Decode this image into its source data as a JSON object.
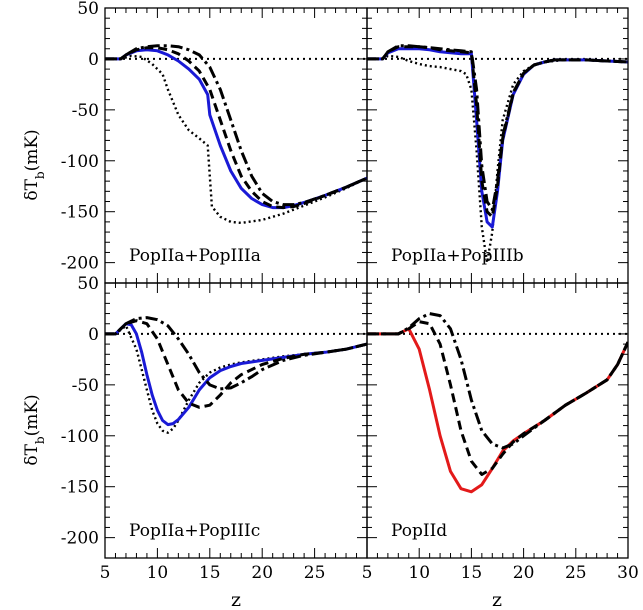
{
  "figure": {
    "ylabel_main": "δT",
    "ylabel_sub": "b",
    "ylabel_unit": "(mK)",
    "xlabel": "z"
  },
  "colors": {
    "blue": "#1a1ad6",
    "red": "#e31a1a",
    "black": "#000000"
  },
  "chart_data": [
    {
      "type": "line",
      "panel": "top-left",
      "annotation": "PopIIa+PopIIIa",
      "xlim": [
        5,
        30
      ],
      "ylim": [
        -220,
        50
      ],
      "series": [
        {
          "style": "dotted",
          "color": "#000000",
          "x": [
            5,
            6.5,
            7.5,
            8.5,
            9.5,
            10.5,
            11,
            12,
            13,
            14,
            14.8,
            15.2,
            16,
            17,
            18,
            20,
            22,
            24,
            26,
            28,
            30
          ],
          "y": [
            0,
            0,
            3,
            2,
            -5,
            -15,
            -30,
            -55,
            -70,
            -78,
            -85,
            -145,
            -155,
            -160,
            -161,
            -158,
            -152,
            -144,
            -136,
            -127,
            -117
          ]
        },
        {
          "style": "solid",
          "color": "#1a1ad6",
          "x": [
            5,
            6.5,
            7,
            8,
            9,
            10,
            11,
            12,
            13,
            14,
            14.8,
            15,
            16,
            17,
            18,
            19,
            20,
            21,
            22,
            23,
            24,
            26,
            28,
            30
          ],
          "y": [
            0,
            0,
            4,
            8,
            9,
            8,
            4,
            -2,
            -10,
            -20,
            -35,
            -55,
            -85,
            -110,
            -127,
            -137,
            -143,
            -146,
            -146,
            -144,
            -141,
            -134,
            -126,
            -117
          ]
        },
        {
          "style": "dashed",
          "color": "#000000",
          "x": [
            5,
            6.5,
            7,
            8,
            9,
            10,
            11,
            12,
            13,
            14,
            15,
            16,
            17,
            18,
            19,
            20,
            21,
            22,
            23,
            24,
            26,
            28,
            30
          ],
          "y": [
            0,
            0,
            4,
            9,
            11,
            11,
            9,
            5,
            -2,
            -12,
            -30,
            -60,
            -90,
            -115,
            -130,
            -140,
            -145,
            -146,
            -145,
            -142,
            -134,
            -126,
            -117
          ]
        },
        {
          "style": "dashdot",
          "color": "#000000",
          "x": [
            5,
            6.5,
            7,
            8,
            9,
            10,
            11,
            12,
            13,
            14,
            15,
            16,
            17,
            18,
            19,
            20,
            21,
            22,
            23,
            24,
            26,
            28,
            30
          ],
          "y": [
            0,
            0,
            4,
            10,
            12,
            13,
            13,
            12,
            9,
            4,
            -8,
            -30,
            -60,
            -90,
            -115,
            -132,
            -140,
            -143,
            -143,
            -141,
            -134,
            -126,
            -117
          ]
        }
      ]
    },
    {
      "type": "line",
      "panel": "top-right",
      "annotation": "PopIIa+PopIIIb",
      "xlim": [
        5,
        30
      ],
      "ylim": [
        -220,
        50
      ],
      "series": [
        {
          "style": "dotted",
          "color": "#000000",
          "x": [
            5,
            6.5,
            7,
            8,
            9,
            10,
            11,
            12,
            13,
            14,
            14.5,
            15,
            15.5,
            16,
            16.5,
            17,
            17.5,
            18,
            19,
            20,
            21,
            22,
            23,
            24,
            25,
            26,
            28,
            30
          ],
          "y": [
            0,
            0,
            3,
            2,
            -2,
            -5,
            -7,
            -8,
            -10,
            -12,
            -15,
            -30,
            -90,
            -165,
            -200,
            -170,
            -110,
            -60,
            -25,
            -12,
            -6,
            -3,
            -2,
            -1,
            -1,
            -1,
            -2,
            -3
          ]
        },
        {
          "style": "solid",
          "color": "#1a1ad6",
          "x": [
            5,
            6.5,
            7,
            8,
            9,
            10,
            11,
            12,
            13,
            14,
            15,
            15.5,
            16,
            16.5,
            17,
            17.5,
            18,
            19,
            20,
            21,
            22,
            23,
            24,
            25,
            26,
            28,
            30
          ],
          "y": [
            0,
            0,
            6,
            10,
            10,
            10,
            9,
            7,
            6,
            5,
            5,
            -60,
            -130,
            -160,
            -165,
            -130,
            -80,
            -35,
            -15,
            -6,
            -3,
            -1,
            -1,
            -1,
            -1,
            -2,
            -3
          ]
        },
        {
          "style": "dashed",
          "color": "#000000",
          "x": [
            5,
            6.5,
            7,
            8,
            9,
            10,
            11,
            12,
            13,
            14,
            15,
            15.5,
            16,
            16.5,
            17,
            17.5,
            18,
            19,
            20,
            21,
            22,
            23,
            24,
            25,
            26,
            28,
            30
          ],
          "y": [
            0,
            0,
            7,
            12,
            12,
            12,
            11,
            9,
            8,
            7,
            6,
            -45,
            -120,
            -150,
            -155,
            -125,
            -78,
            -34,
            -14,
            -6,
            -3,
            -1,
            -1,
            -1,
            -1,
            -2,
            -3
          ]
        },
        {
          "style": "dashdot",
          "color": "#000000",
          "x": [
            5,
            6.5,
            7,
            8,
            9,
            10,
            11,
            12,
            13,
            14,
            15,
            15.5,
            16,
            16.5,
            17,
            17.5,
            18,
            19,
            20,
            21,
            22,
            23,
            24,
            25,
            26,
            28,
            30
          ],
          "y": [
            0,
            0,
            7,
            13,
            13,
            12,
            11,
            10,
            9,
            8,
            7,
            -30,
            -105,
            -140,
            -148,
            -120,
            -76,
            -33,
            -14,
            -6,
            -3,
            -1,
            -1,
            -1,
            -1,
            -2,
            -3
          ]
        }
      ]
    },
    {
      "type": "line",
      "panel": "bottom-left",
      "annotation": "PopIIa+PopIIIc",
      "xlim": [
        5,
        30
      ],
      "ylim": [
        -220,
        50
      ],
      "series": [
        {
          "style": "dotted",
          "color": "#000000",
          "x": [
            5,
            6,
            7,
            8,
            8.5,
            9,
            9.5,
            10,
            10.5,
            11,
            11.5,
            12,
            13,
            14,
            15,
            16,
            17,
            18,
            20,
            22,
            24,
            26,
            28,
            30
          ],
          "y": [
            0,
            0,
            8,
            -15,
            -35,
            -55,
            -75,
            -88,
            -95,
            -97,
            -93,
            -85,
            -65,
            -48,
            -38,
            -33,
            -30,
            -28,
            -25,
            -22,
            -20,
            -18,
            -15,
            -10
          ]
        },
        {
          "style": "solid",
          "color": "#1a1ad6",
          "x": [
            5,
            6,
            7,
            7.5,
            8,
            8.5,
            9,
            9.5,
            10,
            10.5,
            11,
            11.5,
            12,
            13,
            14,
            15,
            16,
            17,
            18,
            20,
            22,
            24,
            26,
            28,
            30
          ],
          "y": [
            0,
            0,
            10,
            9,
            0,
            -18,
            -40,
            -60,
            -75,
            -85,
            -89,
            -88,
            -84,
            -72,
            -55,
            -43,
            -36,
            -32,
            -29,
            -26,
            -23,
            -20,
            -18,
            -15,
            -10
          ]
        },
        {
          "style": "dashed",
          "color": "#000000",
          "x": [
            5,
            6,
            7,
            8,
            9,
            10,
            11,
            12,
            13,
            14,
            15,
            16,
            17,
            18,
            20,
            22,
            24,
            26,
            28,
            30
          ],
          "y": [
            0,
            0,
            10,
            13,
            10,
            -5,
            -30,
            -55,
            -68,
            -72,
            -70,
            -60,
            -48,
            -40,
            -30,
            -24,
            -20,
            -18,
            -15,
            -10
          ]
        },
        {
          "style": "dashdot",
          "color": "#000000",
          "x": [
            5,
            6,
            7,
            8,
            9,
            10,
            11,
            12,
            13,
            14,
            15,
            16,
            17,
            18,
            19,
            20,
            22,
            24,
            26,
            28,
            30
          ],
          "y": [
            0,
            0,
            10,
            15,
            16,
            14,
            8,
            -5,
            -20,
            -38,
            -50,
            -54,
            -53,
            -48,
            -42,
            -35,
            -26,
            -21,
            -18,
            -15,
            -10
          ]
        }
      ]
    },
    {
      "type": "line",
      "panel": "bottom-right",
      "annotation": "PopIId",
      "xlim": [
        5,
        30
      ],
      "ylim": [
        -220,
        50
      ],
      "series": [
        {
          "style": "solid",
          "color": "#e31a1a",
          "x": [
            5,
            8,
            9,
            10,
            11,
            12,
            13,
            14,
            15,
            16,
            17,
            18,
            19,
            20,
            22,
            24,
            26,
            28,
            29,
            30
          ],
          "y": [
            0,
            0,
            5,
            -15,
            -55,
            -100,
            -135,
            -152,
            -155,
            -148,
            -132,
            -115,
            -105,
            -98,
            -85,
            -70,
            -58,
            -45,
            -30,
            -8
          ]
        },
        {
          "style": "dashed",
          "color": "#000000",
          "x": [
            5,
            8,
            9,
            10,
            11,
            12,
            13,
            14,
            15,
            16,
            17,
            18,
            19,
            20,
            22,
            24,
            26,
            28,
            29,
            30
          ],
          "y": [
            0,
            0,
            5,
            12,
            10,
            -10,
            -50,
            -95,
            -125,
            -138,
            -132,
            -118,
            -106,
            -98,
            -85,
            -70,
            -58,
            -45,
            -30,
            -8
          ]
        },
        {
          "style": "dashdot",
          "color": "#000000",
          "x": [
            5,
            8,
            9,
            10,
            11,
            12,
            13,
            14,
            15,
            16,
            17,
            18,
            19,
            20,
            22,
            24,
            26,
            28,
            29,
            30
          ],
          "y": [
            0,
            0,
            6,
            15,
            20,
            18,
            5,
            -25,
            -65,
            -95,
            -108,
            -112,
            -108,
            -100,
            -85,
            -70,
            -58,
            -45,
            -30,
            -8
          ]
        }
      ]
    }
  ]
}
